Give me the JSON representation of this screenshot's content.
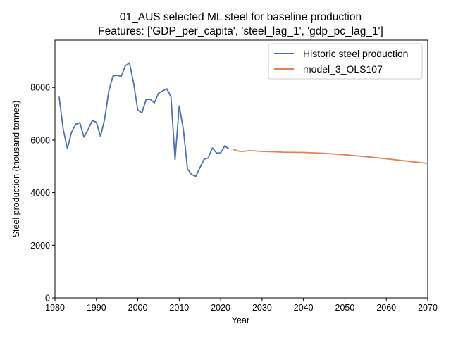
{
  "chart_data": {
    "type": "line",
    "title": "01_AUS selected ML steel for baseline production",
    "subtitle": "Features: ['GDP_per_capita', 'steel_lag_1', 'gdp_pc_lag_1']",
    "xlabel": "Year",
    "ylabel": "Steel production (thousand tonnes)",
    "xlim": [
      1980,
      2070
    ],
    "ylim": [
      0,
      9800
    ],
    "x_ticks": [
      1980,
      1990,
      2000,
      2010,
      2020,
      2030,
      2040,
      2050,
      2060,
      2070
    ],
    "y_ticks": [
      0,
      2000,
      4000,
      6000,
      8000
    ],
    "grid": false,
    "legend_position": "top-right",
    "series": [
      {
        "name": "Historic steel production",
        "color": "#4c72b0",
        "x": [
          1981,
          1982,
          1983,
          1984,
          1985,
          1986,
          1987,
          1988,
          1989,
          1990,
          1991,
          1992,
          1993,
          1994,
          1995,
          1996,
          1997,
          1998,
          1999,
          2000,
          2001,
          2002,
          2003,
          2004,
          2005,
          2006,
          2007,
          2008,
          2009,
          2010,
          2011,
          2012,
          2013,
          2014,
          2015,
          2016,
          2017,
          2018,
          2019,
          2020,
          2021,
          2022
        ],
        "y": [
          7650,
          6400,
          5680,
          6300,
          6600,
          6660,
          6110,
          6400,
          6740,
          6680,
          6140,
          6800,
          7870,
          8430,
          8460,
          8420,
          8830,
          8930,
          8150,
          7140,
          7040,
          7540,
          7550,
          7420,
          7780,
          7870,
          7950,
          7650,
          5260,
          7300,
          6410,
          4900,
          4690,
          4620,
          4950,
          5270,
          5320,
          5700,
          5510,
          5510,
          5780,
          5660
        ]
      },
      {
        "name": "model_3_OLS107",
        "color": "#dd8452",
        "x": [
          2023,
          2024,
          2025,
          2026,
          2027,
          2028,
          2030,
          2032,
          2035,
          2040,
          2045,
          2050,
          2055,
          2060,
          2065,
          2070
        ],
        "y": [
          5650,
          5590,
          5570,
          5580,
          5600,
          5590,
          5570,
          5560,
          5540,
          5530,
          5500,
          5440,
          5370,
          5290,
          5200,
          5110
        ]
      }
    ]
  }
}
